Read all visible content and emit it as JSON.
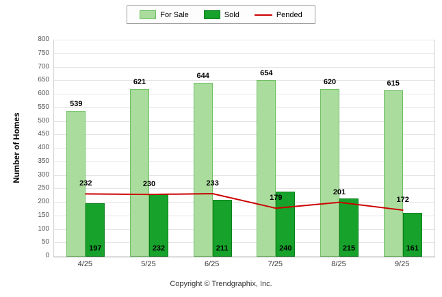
{
  "chart_data": {
    "type": "bar",
    "title": "",
    "categories": [
      "4/25",
      "5/25",
      "6/25",
      "7/25",
      "8/25",
      "9/25"
    ],
    "series": [
      {
        "name": "For Sale",
        "type": "bar",
        "color": "#aadc9d",
        "border": "#6fbf63",
        "values": [
          539,
          621,
          644,
          654,
          620,
          615
        ]
      },
      {
        "name": "Sold",
        "type": "bar",
        "color": "#16a22b",
        "border": "#0b7f1e",
        "values": [
          197,
          232,
          211,
          240,
          215,
          161
        ]
      },
      {
        "name": "Pended",
        "type": "line",
        "color": "#cc0000",
        "values": [
          232,
          230,
          233,
          179,
          201,
          172
        ]
      }
    ],
    "xlabel": "",
    "ylabel": "Number of Homes",
    "ylim": [
      0,
      800
    ],
    "ytick_step": 50,
    "grid": true,
    "legend_position": "top"
  },
  "footer": {
    "copyright": "Copyright © Trendgraphix, Inc."
  }
}
